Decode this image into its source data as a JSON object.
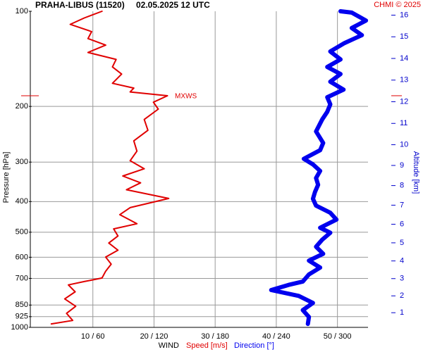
{
  "chart_data": {
    "type": "profile",
    "title": "PRAHA-LIBUS (11520)",
    "subtitle": "02.05.2025 12 UTC",
    "credit": "CHMI © 2025",
    "y_label": "Pressure [hPa]",
    "y2_label": "Altitude [km]",
    "x_label": "WIND",
    "ylim": [
      1000,
      100
    ],
    "y_scale": "log",
    "yticks": [
      100,
      200,
      300,
      400,
      500,
      600,
      700,
      850,
      925,
      1000
    ],
    "y2ticks": [
      1,
      2,
      3,
      4,
      5,
      6,
      7,
      8,
      9,
      10,
      11,
      12,
      13,
      14,
      15,
      16
    ],
    "y2_scale": "standard-atmosphere",
    "xlim": [
      0,
      55
    ],
    "xticks": [
      {
        "value": 10,
        "label": "10 / 60"
      },
      {
        "value": 20,
        "label": "20 / 120"
      },
      {
        "value": 30,
        "label": "30 / 180"
      },
      {
        "value": 40,
        "label": "40 / 240"
      },
      {
        "value": 50,
        "label": "50 / 300"
      }
    ],
    "grid": true,
    "mxws": {
      "label": "MXWS",
      "pressure": 185,
      "color": "#e00000"
    },
    "series": [
      {
        "name": "Speed [m/s]",
        "color": "#e00000",
        "width": 2,
        "xlim": [
          0,
          55
        ],
        "pressure": [
          975,
          951,
          903,
          858,
          813,
          772,
          734,
          716,
          698,
          664,
          631,
          599,
          570,
          541,
          514,
          488,
          470,
          440,
          418,
          391,
          367,
          349,
          332,
          315,
          297,
          277,
          257,
          238,
          220,
          204,
          194,
          185,
          180,
          175,
          169,
          158,
          150,
          142,
          135,
          128,
          122,
          116,
          110,
          105,
          100
        ],
        "values": [
          3.2,
          6.7,
          5.7,
          7.2,
          5.4,
          7.1,
          6.0,
          8.6,
          11.5,
          12.1,
          13.0,
          12.1,
          14.1,
          12.6,
          14.1,
          13.4,
          17.2,
          14.4,
          16.1,
          22.4,
          15.5,
          17.8,
          14.9,
          18.4,
          16.1,
          17.2,
          16.7,
          19.0,
          18.4,
          20.7,
          19.9,
          22.2,
          16.1,
          16.7,
          13.2,
          14.7,
          13.2,
          13.8,
          9.2,
          12.1,
          9.2,
          9.8,
          6.3,
          8.6,
          11.5
        ]
      },
      {
        "name": "Direction [°]",
        "color": "#0000ee",
        "width": 6,
        "xlim": [
          0,
          330
        ],
        "pressure": [
          975,
          927,
          882,
          837,
          795,
          762,
          734,
          716,
          680,
          647,
          615,
          585,
          556,
          528,
          502,
          484,
          456,
          434,
          412,
          392,
          373,
          354,
          337,
          320,
          305,
          293,
          275,
          261,
          240,
          220,
          208,
          197,
          187,
          177,
          167,
          158,
          150,
          142,
          134,
          126,
          119,
          113,
          107,
          101,
          100
        ],
        "values": [
          271,
          272,
          266,
          276,
          262,
          235,
          252,
          266,
          272,
          283,
          272,
          286,
          279,
          285,
          293,
          283,
          299,
          293,
          279,
          276,
          278,
          281,
          279,
          283,
          276,
          267,
          283,
          286,
          279,
          285,
          290,
          293,
          290,
          306,
          293,
          303,
          290,
          303,
          293,
          307,
          324,
          314,
          328,
          314,
          303
        ]
      }
    ]
  }
}
